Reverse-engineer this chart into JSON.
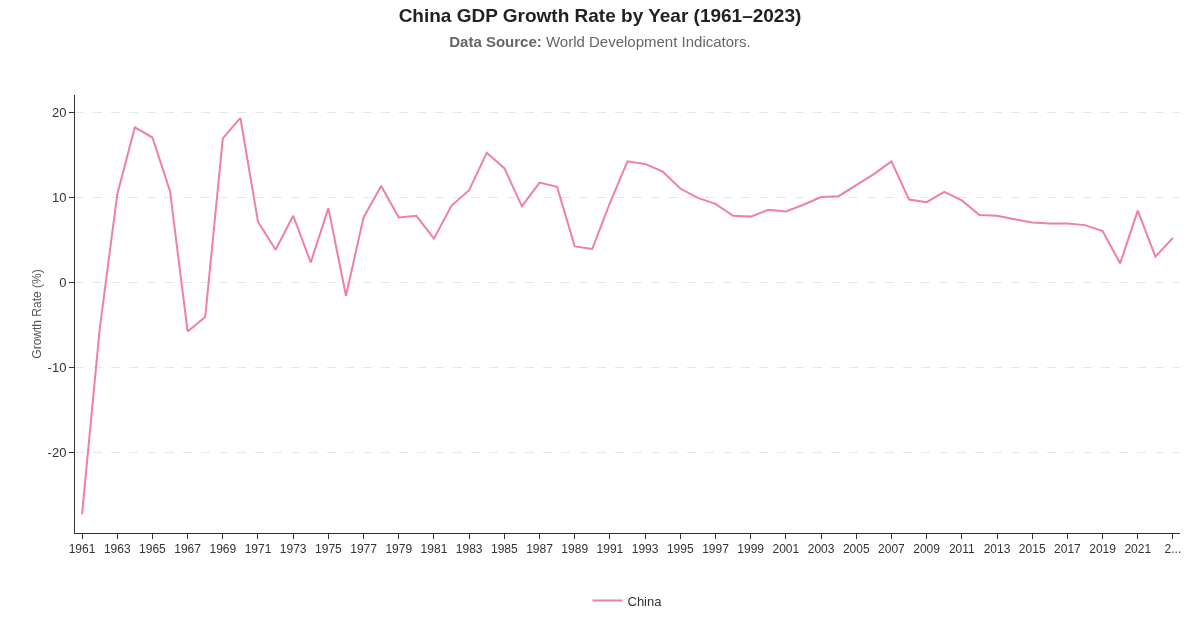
{
  "chart_data": {
    "type": "line",
    "title": "China GDP Growth Rate by Year (1961–2023)",
    "subtitle": "Data Source: World Development Indicators.",
    "ylabel": "Growth Rate (%)",
    "x": [
      1961,
      1962,
      1963,
      1964,
      1965,
      1966,
      1967,
      1968,
      1969,
      1970,
      1971,
      1972,
      1973,
      1974,
      1975,
      1976,
      1977,
      1978,
      1979,
      1980,
      1981,
      1982,
      1983,
      1984,
      1985,
      1986,
      1987,
      1988,
      1989,
      1990,
      1991,
      1992,
      1993,
      1994,
      1995,
      1996,
      1997,
      1998,
      1999,
      2000,
      2001,
      2002,
      2003,
      2004,
      2005,
      2006,
      2007,
      2008,
      2009,
      2010,
      2011,
      2012,
      2013,
      2014,
      2015,
      2016,
      2017,
      2018,
      2019,
      2020,
      2021,
      2022,
      2023
    ],
    "series": [
      {
        "name": "China",
        "color": "#ef7fa7",
        "values": [
          -27.3,
          -5.6,
          10.3,
          18.2,
          17.0,
          10.7,
          -5.8,
          -4.1,
          16.9,
          19.3,
          7.1,
          3.8,
          7.8,
          2.3,
          8.7,
          -1.6,
          7.6,
          11.3,
          7.6,
          7.8,
          5.1,
          9.0,
          10.8,
          15.2,
          13.4,
          8.9,
          11.7,
          11.2,
          4.2,
          3.9,
          9.3,
          14.2,
          13.9,
          13.0,
          11.0,
          9.9,
          9.2,
          7.8,
          7.7,
          8.5,
          8.3,
          9.1,
          10.0,
          10.1,
          11.4,
          12.7,
          14.2,
          9.7,
          9.4,
          10.6,
          9.6,
          7.9,
          7.8,
          7.4,
          7.0,
          6.9,
          6.9,
          6.7,
          6.0,
          2.2,
          8.4,
          3.0,
          5.2
        ]
      }
    ],
    "xlim": [
      1960.6,
      2023.4
    ],
    "ylim": [
      -29.5,
      22
    ],
    "xticks": [
      1961,
      1963,
      1965,
      1967,
      1969,
      1971,
      1973,
      1975,
      1977,
      1979,
      1981,
      1983,
      1985,
      1987,
      1989,
      1991,
      1993,
      1995,
      1997,
      1999,
      2001,
      2003,
      2005,
      2007,
      2009,
      2011,
      2013,
      2015,
      2017,
      2019,
      2021,
      {
        "value": 2023,
        "label": "2..."
      }
    ],
    "yticks": [
      -20,
      -10,
      0,
      10,
      20
    ],
    "grid": "y",
    "legend": "bottom",
    "marker": "none",
    "line_style": "solid"
  }
}
